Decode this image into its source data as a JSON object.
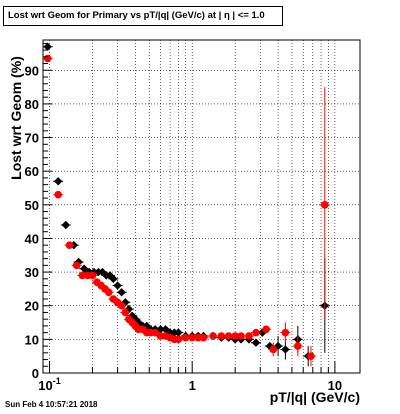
{
  "chart_data": {
    "type": "scatter",
    "title": "Lost wrt Geom for Primary vs pT/|q| (GeV/c) at |  η | <= 1.0",
    "xlabel": "pT/|q| (GeV/c)",
    "ylabel": "Lost wrt Geom (%)",
    "xscale": "log",
    "xlim": [
      0.09,
      15
    ],
    "ylim": [
      0,
      99
    ],
    "grid": true,
    "x_ticks": [
      {
        "v": 0.1,
        "label": "10",
        "sup": "-1"
      },
      {
        "v": 1,
        "label": "1",
        "sup": ""
      },
      {
        "v": 10,
        "label": "10",
        "sup": ""
      }
    ],
    "y_ticks": [
      0,
      10,
      20,
      30,
      40,
      50,
      60,
      70,
      80,
      90
    ],
    "series": [
      {
        "color": "#000000",
        "marker": "diamond",
        "points": [
          [
            0.097,
            97,
            0
          ],
          [
            0.115,
            57,
            0
          ],
          [
            0.13,
            44,
            0
          ],
          [
            0.148,
            38,
            0
          ],
          [
            0.16,
            33,
            0
          ],
          [
            0.175,
            31,
            0
          ],
          [
            0.19,
            30,
            0
          ],
          [
            0.205,
            30,
            0
          ],
          [
            0.22,
            30,
            0
          ],
          [
            0.235,
            30,
            0
          ],
          [
            0.25,
            29,
            0
          ],
          [
            0.265,
            29,
            0
          ],
          [
            0.28,
            28,
            0
          ],
          [
            0.3,
            26,
            0
          ],
          [
            0.32,
            24,
            0
          ],
          [
            0.34,
            21,
            0
          ],
          [
            0.36,
            19,
            0
          ],
          [
            0.38,
            17,
            0
          ],
          [
            0.4,
            16,
            0
          ],
          [
            0.42,
            15,
            0
          ],
          [
            0.45,
            14,
            0
          ],
          [
            0.48,
            14,
            0
          ],
          [
            0.51,
            13,
            0
          ],
          [
            0.55,
            13,
            0
          ],
          [
            0.6,
            13,
            0
          ],
          [
            0.65,
            13,
            0
          ],
          [
            0.7,
            12,
            0
          ],
          [
            0.75,
            12,
            0
          ],
          [
            0.8,
            12,
            0
          ],
          [
            0.9,
            11,
            0
          ],
          [
            1.0,
            11,
            0
          ],
          [
            1.1,
            11,
            0
          ],
          [
            1.2,
            11,
            0
          ],
          [
            1.4,
            11,
            0
          ],
          [
            1.6,
            10.5,
            0
          ],
          [
            1.8,
            10.5,
            0
          ],
          [
            2.0,
            10,
            0
          ],
          [
            2.2,
            10,
            0
          ],
          [
            2.5,
            10,
            0
          ],
          [
            2.8,
            9,
            0
          ],
          [
            3.1,
            12,
            0
          ],
          [
            3.5,
            8,
            0
          ],
          [
            4.0,
            8,
            3
          ],
          [
            4.5,
            7,
            3
          ],
          [
            5.5,
            10,
            4
          ],
          [
            6.5,
            5,
            3
          ],
          [
            8.5,
            20,
            14
          ]
        ]
      },
      {
        "color": "#ff0000",
        "marker": "circle",
        "points": [
          [
            0.097,
            93.5,
            0
          ],
          [
            0.115,
            53,
            0
          ],
          [
            0.138,
            38,
            0
          ],
          [
            0.155,
            32,
            0
          ],
          [
            0.17,
            29,
            0
          ],
          [
            0.185,
            29,
            0
          ],
          [
            0.2,
            29,
            0
          ],
          [
            0.215,
            27,
            0
          ],
          [
            0.23,
            26,
            0
          ],
          [
            0.245,
            25,
            0
          ],
          [
            0.26,
            24,
            0
          ],
          [
            0.28,
            22,
            0
          ],
          [
            0.3,
            21,
            0
          ],
          [
            0.32,
            20,
            0
          ],
          [
            0.34,
            18,
            0
          ],
          [
            0.36,
            16,
            0
          ],
          [
            0.38,
            15,
            0
          ],
          [
            0.4,
            14,
            0
          ],
          [
            0.42,
            13,
            0
          ],
          [
            0.45,
            13,
            0
          ],
          [
            0.48,
            12,
            0
          ],
          [
            0.51,
            12,
            0
          ],
          [
            0.55,
            12,
            0
          ],
          [
            0.6,
            11,
            0
          ],
          [
            0.65,
            11,
            0
          ],
          [
            0.7,
            10.5,
            0
          ],
          [
            0.75,
            10,
            0
          ],
          [
            0.8,
            10,
            0
          ],
          [
            0.9,
            10.5,
            0
          ],
          [
            1.0,
            10.5,
            0
          ],
          [
            1.1,
            10.5,
            0
          ],
          [
            1.2,
            10.5,
            0
          ],
          [
            1.4,
            11,
            0
          ],
          [
            1.6,
            11,
            0
          ],
          [
            1.8,
            11,
            0
          ],
          [
            2.0,
            11,
            0
          ],
          [
            2.2,
            11,
            0
          ],
          [
            2.5,
            11,
            0
          ],
          [
            2.8,
            12,
            0
          ],
          [
            3.3,
            13,
            0
          ],
          [
            3.7,
            7,
            2
          ],
          [
            4.5,
            12,
            3
          ],
          [
            5.5,
            8,
            3
          ],
          [
            6.8,
            5,
            3
          ],
          [
            8.5,
            50,
            35
          ]
        ]
      }
    ]
  },
  "footer": {
    "timestamp": "Sun Feb  4 10:57:21 2018"
  }
}
